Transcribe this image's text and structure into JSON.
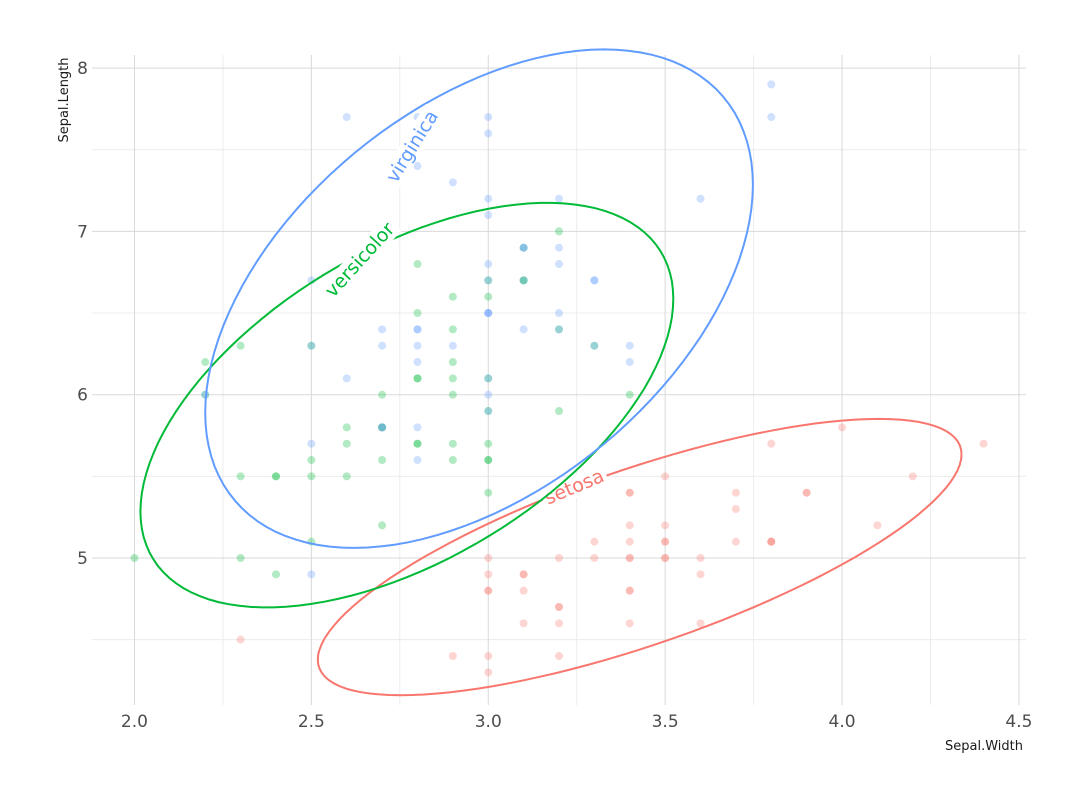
{
  "chart_data": {
    "type": "scatter",
    "xlabel": "Sepal.Width",
    "ylabel": "Sepal.Length",
    "xlim": [
      1.88,
      4.52
    ],
    "ylim": [
      4.1,
      8.08
    ],
    "x_ticks": [
      2.0,
      2.5,
      3.0,
      3.5,
      4.0,
      4.5
    ],
    "x_tick_labels": [
      "2.0",
      "2.5",
      "3.0",
      "3.5",
      "4.0",
      "4.5"
    ],
    "y_ticks": [
      5,
      6,
      7,
      8
    ],
    "y_tick_labels": [
      "5",
      "6",
      "7",
      "8"
    ],
    "grid": true,
    "legend": "none (labels drawn on ellipses)",
    "series": [
      {
        "name": "setosa",
        "color": "#F8766D",
        "ellipse": {
          "center": [
            3.43,
            5.01
          ],
          "label_at": [
            3.25,
            5.4
          ]
        },
        "points": [
          [
            3.5,
            5.1
          ],
          [
            3.0,
            4.9
          ],
          [
            3.2,
            4.7
          ],
          [
            3.1,
            4.6
          ],
          [
            3.6,
            5.0
          ],
          [
            3.9,
            5.4
          ],
          [
            3.4,
            4.6
          ],
          [
            3.4,
            5.0
          ],
          [
            2.9,
            4.4
          ],
          [
            3.1,
            4.9
          ],
          [
            3.7,
            5.4
          ],
          [
            3.4,
            4.8
          ],
          [
            3.0,
            4.8
          ],
          [
            3.0,
            4.3
          ],
          [
            4.0,
            5.8
          ],
          [
            4.4,
            5.7
          ],
          [
            3.9,
            5.4
          ],
          [
            3.5,
            5.1
          ],
          [
            3.8,
            5.7
          ],
          [
            3.8,
            5.1
          ],
          [
            3.4,
            5.4
          ],
          [
            3.7,
            5.1
          ],
          [
            3.6,
            4.6
          ],
          [
            3.3,
            5.1
          ],
          [
            3.4,
            4.8
          ],
          [
            3.0,
            5.0
          ],
          [
            3.4,
            5.0
          ],
          [
            3.5,
            5.2
          ],
          [
            3.4,
            5.2
          ],
          [
            3.2,
            4.7
          ],
          [
            3.1,
            4.8
          ],
          [
            3.4,
            5.4
          ],
          [
            4.1,
            5.2
          ],
          [
            4.2,
            5.5
          ],
          [
            3.1,
            4.9
          ],
          [
            3.2,
            5.0
          ],
          [
            3.5,
            5.5
          ],
          [
            3.6,
            4.9
          ],
          [
            3.0,
            4.4
          ],
          [
            3.4,
            5.1
          ],
          [
            3.5,
            5.0
          ],
          [
            2.3,
            4.5
          ],
          [
            3.2,
            4.4
          ],
          [
            3.5,
            5.0
          ],
          [
            3.8,
            5.1
          ],
          [
            3.0,
            4.8
          ],
          [
            3.8,
            5.1
          ],
          [
            3.2,
            4.6
          ],
          [
            3.7,
            5.3
          ],
          [
            3.3,
            5.0
          ]
        ]
      },
      {
        "name": "versicolor",
        "color": "#00BA38",
        "ellipse": {
          "center": [
            2.77,
            5.94
          ],
          "label_at": [
            2.65,
            6.8
          ]
        },
        "points": [
          [
            3.2,
            7.0
          ],
          [
            3.2,
            6.4
          ],
          [
            3.1,
            6.9
          ],
          [
            2.3,
            5.5
          ],
          [
            2.8,
            6.5
          ],
          [
            2.8,
            5.7
          ],
          [
            3.3,
            6.3
          ],
          [
            2.4,
            4.9
          ],
          [
            2.9,
            6.6
          ],
          [
            2.7,
            5.2
          ],
          [
            2.0,
            5.0
          ],
          [
            3.0,
            5.9
          ],
          [
            2.2,
            6.0
          ],
          [
            2.9,
            6.1
          ],
          [
            2.9,
            5.6
          ],
          [
            3.1,
            6.7
          ],
          [
            3.0,
            5.6
          ],
          [
            2.7,
            5.8
          ],
          [
            2.2,
            6.2
          ],
          [
            2.5,
            5.6
          ],
          [
            3.2,
            5.9
          ],
          [
            2.8,
            6.1
          ],
          [
            2.5,
            6.3
          ],
          [
            2.8,
            6.1
          ],
          [
            2.9,
            6.4
          ],
          [
            3.0,
            6.6
          ],
          [
            2.8,
            6.8
          ],
          [
            3.0,
            6.7
          ],
          [
            2.9,
            6.0
          ],
          [
            2.6,
            5.7
          ],
          [
            2.4,
            5.5
          ],
          [
            2.4,
            5.5
          ],
          [
            2.7,
            5.8
          ],
          [
            2.7,
            6.0
          ],
          [
            3.0,
            5.4
          ],
          [
            3.4,
            6.0
          ],
          [
            3.1,
            6.7
          ],
          [
            2.3,
            6.3
          ],
          [
            3.0,
            5.6
          ],
          [
            2.5,
            5.5
          ],
          [
            2.6,
            5.5
          ],
          [
            3.0,
            6.1
          ],
          [
            2.6,
            5.8
          ],
          [
            2.3,
            5.0
          ],
          [
            2.7,
            5.6
          ],
          [
            3.0,
            5.7
          ],
          [
            2.9,
            5.7
          ],
          [
            2.9,
            6.2
          ],
          [
            2.5,
            5.1
          ],
          [
            2.8,
            5.7
          ]
        ]
      },
      {
        "name": "virginica",
        "color": "#619CFF",
        "ellipse": {
          "center": [
            2.97,
            6.59
          ],
          "label_at": [
            2.8,
            7.5
          ]
        },
        "points": [
          [
            3.3,
            6.3
          ],
          [
            2.7,
            5.8
          ],
          [
            3.0,
            7.1
          ],
          [
            2.9,
            6.3
          ],
          [
            3.0,
            6.5
          ],
          [
            3.0,
            7.6
          ],
          [
            2.5,
            4.9
          ],
          [
            2.9,
            7.3
          ],
          [
            2.5,
            6.7
          ],
          [
            3.6,
            7.2
          ],
          [
            3.2,
            6.5
          ],
          [
            2.7,
            6.4
          ],
          [
            3.0,
            6.8
          ],
          [
            2.5,
            5.7
          ],
          [
            2.8,
            5.8
          ],
          [
            3.2,
            6.4
          ],
          [
            3.0,
            6.5
          ],
          [
            3.8,
            7.7
          ],
          [
            2.6,
            7.7
          ],
          [
            2.2,
            6.0
          ],
          [
            3.2,
            6.9
          ],
          [
            2.8,
            5.6
          ],
          [
            2.8,
            7.7
          ],
          [
            2.7,
            6.3
          ],
          [
            3.3,
            6.7
          ],
          [
            3.2,
            7.2
          ],
          [
            2.8,
            6.2
          ],
          [
            3.0,
            6.1
          ],
          [
            2.8,
            6.4
          ],
          [
            3.0,
            7.2
          ],
          [
            2.8,
            7.4
          ],
          [
            3.8,
            7.9
          ],
          [
            2.8,
            6.4
          ],
          [
            2.8,
            6.3
          ],
          [
            2.6,
            6.1
          ],
          [
            3.0,
            7.7
          ],
          [
            3.4,
            6.3
          ],
          [
            3.1,
            6.4
          ],
          [
            3.0,
            6.0
          ],
          [
            3.1,
            6.9
          ],
          [
            3.1,
            6.7
          ],
          [
            3.1,
            6.9
          ],
          [
            2.7,
            5.8
          ],
          [
            3.2,
            6.8
          ],
          [
            3.3,
            6.7
          ],
          [
            3.0,
            6.7
          ],
          [
            2.5,
            6.3
          ],
          [
            3.0,
            6.5
          ],
          [
            3.4,
            6.2
          ],
          [
            3.0,
            5.9
          ]
        ]
      }
    ]
  }
}
